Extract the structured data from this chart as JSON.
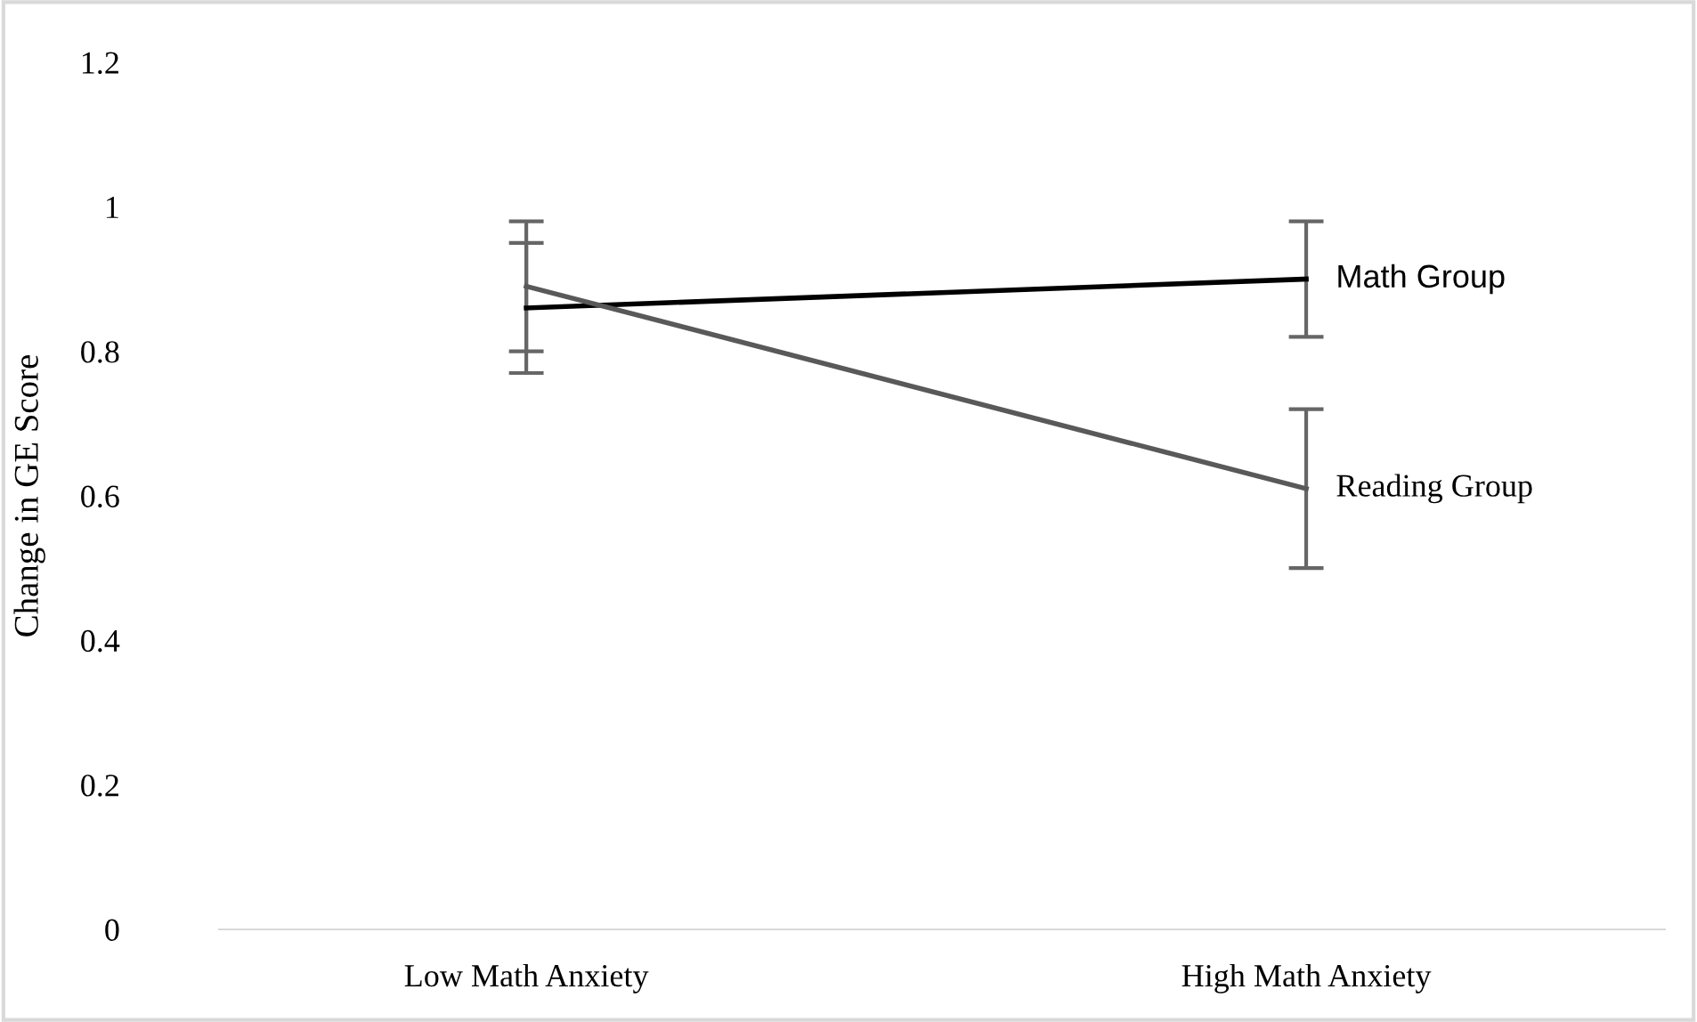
{
  "chart_data": {
    "type": "line",
    "ylabel": "Change in GE Score",
    "categories": [
      "Low Math Anxiety",
      "High Math Anxiety"
    ],
    "series": [
      {
        "name": "Math Group",
        "color": "#000000",
        "values": [
          0.86,
          0.9
        ],
        "errors": [
          0.09,
          0.08
        ]
      },
      {
        "name": "Reading Group",
        "color": "#595959",
        "values": [
          0.89,
          0.61
        ],
        "errors": [
          0.09,
          0.11
        ]
      }
    ],
    "ylim": [
      0,
      1.2
    ],
    "yticks": [
      0,
      0.2,
      0.4,
      0.6,
      0.8,
      1,
      1.2
    ],
    "grid": false,
    "legend": false,
    "marker": "none",
    "line_style": "solid"
  }
}
